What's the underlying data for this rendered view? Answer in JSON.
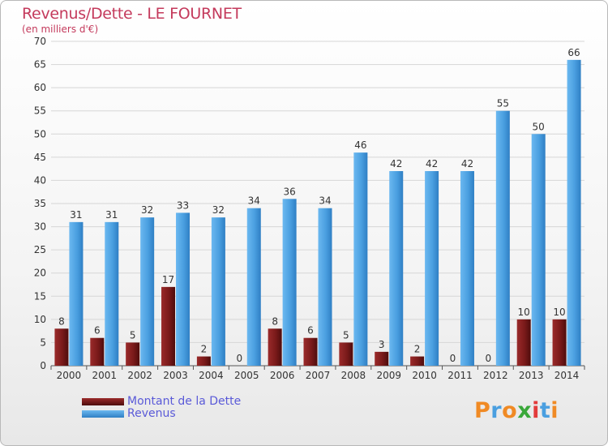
{
  "title": "Revenus/Dette - LE FOURNET",
  "subtitle": "(en milliers d'€)",
  "legend": {
    "debt_label": "Montant de la Dette",
    "revenue_label": "Revenus"
  },
  "logo_text": "Proxiti",
  "colors": {
    "debt": "#7a1a1a",
    "revenue": "#4a9fe0",
    "title": "#c43a5c",
    "legend_text": "#5a5ad8"
  },
  "chart_data": {
    "type": "bar",
    "categories": [
      "2000",
      "2001",
      "2002",
      "2003",
      "2004",
      "2005",
      "2006",
      "2007",
      "2008",
      "2009",
      "2010",
      "2011",
      "2012",
      "2013",
      "2014"
    ],
    "series": [
      {
        "name": "Montant de la Dette",
        "values": [
          8,
          6,
          5,
          17,
          2,
          0,
          8,
          6,
          5,
          3,
          2,
          0,
          0,
          10,
          10
        ]
      },
      {
        "name": "Revenus",
        "values": [
          31,
          31,
          32,
          33,
          32,
          34,
          36,
          34,
          46,
          42,
          42,
          42,
          55,
          50,
          66
        ]
      }
    ],
    "ylim": [
      0,
      70
    ],
    "yticks": [
      0,
      5,
      10,
      15,
      20,
      25,
      30,
      35,
      40,
      45,
      50,
      55,
      60,
      65,
      70
    ],
    "grid": true,
    "legend_position": "bottom-left"
  }
}
